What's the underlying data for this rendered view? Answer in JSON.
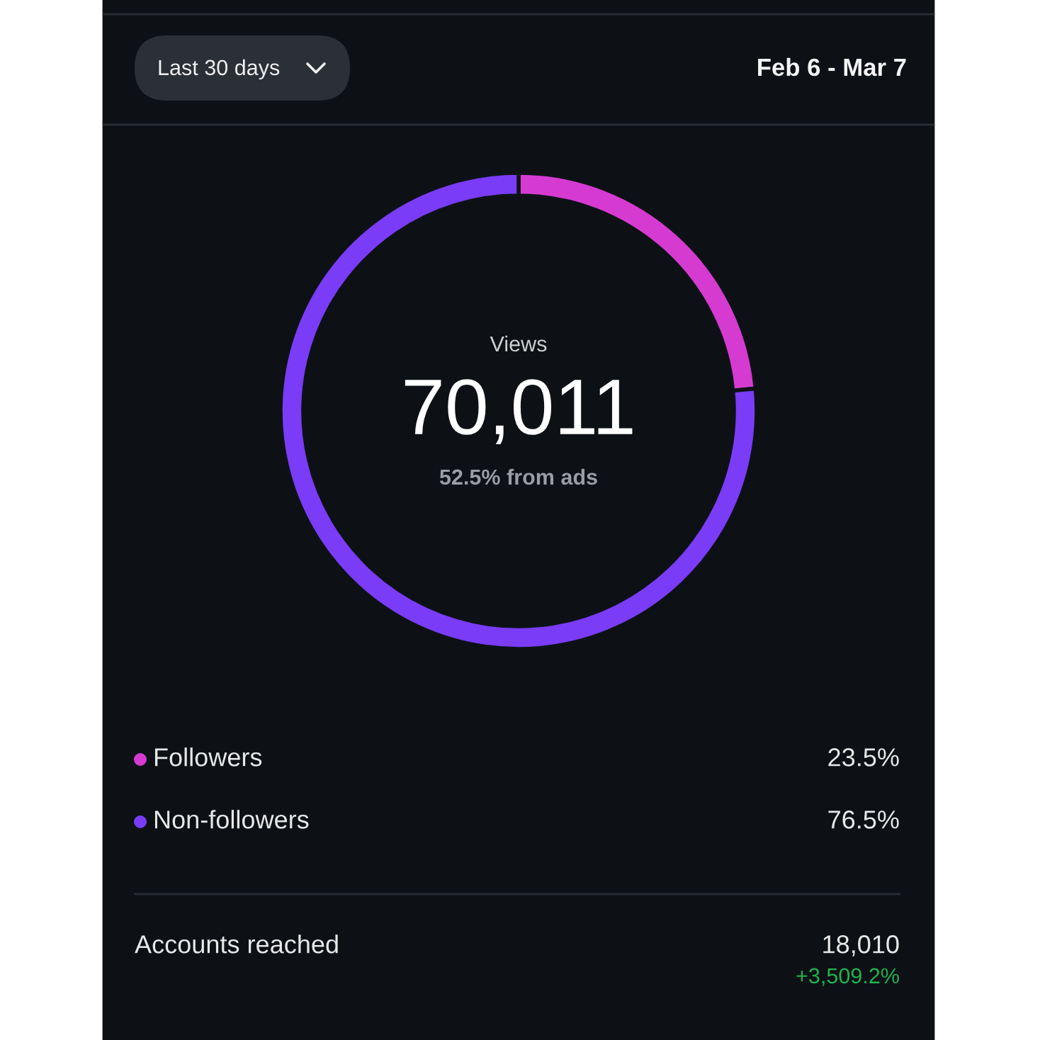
{
  "chart_data": {
    "type": "donut",
    "categories": [
      "Followers",
      "Non-followers"
    ],
    "values": [
      23.5,
      76.5
    ],
    "colors": [
      "#d63bd1",
      "#7a3cf6"
    ],
    "value_labels": [
      "23.5%",
      "76.5%"
    ],
    "legend": "bottom",
    "annotations": [
      "Last 30 days",
      "Feb 6 - Mar 7",
      "Views",
      "70,011",
      "52.5% from ads",
      "Accounts reached",
      "18,010",
      "+3,509.2%"
    ]
  }
}
